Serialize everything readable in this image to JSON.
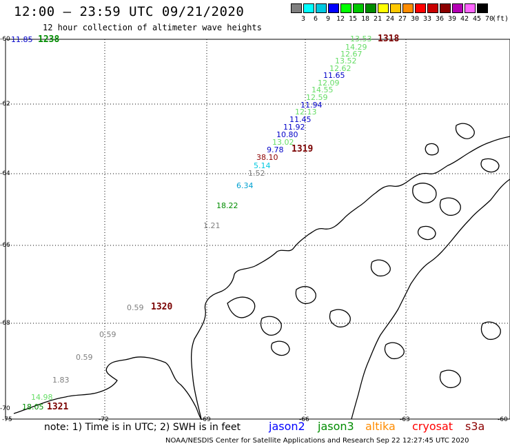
{
  "header": {
    "title": "12:00 – 23:59 UTC 09/21/2020",
    "subtitle": "12 hour collection of altimeter wave heights"
  },
  "legend": {
    "unit": "(ft)",
    "swatches": [
      {
        "label": "3",
        "color": "#7f7f7f"
      },
      {
        "label": "6",
        "color": "#00ffff"
      },
      {
        "label": "9",
        "color": "#00c8e0"
      },
      {
        "label": "12",
        "color": "#0000ff"
      },
      {
        "label": "15",
        "color": "#00ff00"
      },
      {
        "label": "18",
        "color": "#00c800"
      },
      {
        "label": "21",
        "color": "#008c00"
      },
      {
        "label": "24",
        "color": "#ffff00"
      },
      {
        "label": "27",
        "color": "#ffc800"
      },
      {
        "label": "30",
        "color": "#ff8c00"
      },
      {
        "label": "33",
        "color": "#ff0000"
      },
      {
        "label": "36",
        "color": "#c80000"
      },
      {
        "label": "39",
        "color": "#8c0000"
      },
      {
        "label": "42",
        "color": "#b400b4"
      },
      {
        "label": "45",
        "color": "#ff64ff"
      },
      {
        "label": "70",
        "color": "#000000"
      }
    ]
  },
  "axes": {
    "lat_labels": [
      "-60",
      "-62",
      "-64",
      "-66",
      "-68",
      "-70"
    ],
    "lon_labels": [
      "-75",
      "-72",
      "-69",
      "-66",
      "-63",
      "-60"
    ]
  },
  "observations": [
    {
      "text": "11.85",
      "color": "#0000c8"
    },
    {
      "text": "13.53",
      "color": "#66dd66"
    },
    {
      "text": "14.29",
      "color": "#66dd66"
    },
    {
      "text": "12.67",
      "color": "#66dd66"
    },
    {
      "text": "13.52",
      "color": "#66dd66"
    },
    {
      "text": "12.62",
      "color": "#66dd66"
    },
    {
      "text": "11.65",
      "color": "#0000c8"
    },
    {
      "text": "12.09",
      "color": "#66dd66"
    },
    {
      "text": "14.55",
      "color": "#66dd66"
    },
    {
      "text": "12.59",
      "color": "#66dd66"
    },
    {
      "text": "11.94",
      "color": "#0000c8"
    },
    {
      "text": "12.13",
      "color": "#66dd66"
    },
    {
      "text": "11.45",
      "color": "#0000c8"
    },
    {
      "text": "11.92",
      "color": "#0000c8"
    },
    {
      "text": "10.80",
      "color": "#0000c8"
    },
    {
      "text": "13.02",
      "color": "#66dd66"
    },
    {
      "text": "9.78",
      "color": "#0000c8"
    },
    {
      "text": "38.10",
      "color": "#8c0000"
    },
    {
      "text": "5.14",
      "color": "#00c8e0"
    },
    {
      "text": "1.52",
      "color": "#7f7f7f"
    },
    {
      "text": "6.34",
      "color": "#00a0d0"
    },
    {
      "text": "18.22",
      "color": "#008c00"
    },
    {
      "text": "1.21",
      "color": "#7f7f7f"
    },
    {
      "text": "0.59",
      "color": "#7f7f7f"
    },
    {
      "text": "0.59",
      "color": "#7f7f7f"
    },
    {
      "text": "0.59",
      "color": "#7f7f7f"
    },
    {
      "text": "1.83",
      "color": "#7f7f7f"
    },
    {
      "text": "14.98",
      "color": "#66dd66"
    },
    {
      "text": "18.05",
      "color": "#008c00"
    }
  ],
  "passes": [
    {
      "text": "1238",
      "color": "#008c00"
    },
    {
      "text": "1318",
      "color": "#7a0000"
    },
    {
      "text": "1319",
      "color": "#7a0000"
    },
    {
      "text": "1320",
      "color": "#7a0000"
    },
    {
      "text": "1321",
      "color": "#7a0000"
    }
  ],
  "footer": {
    "note": "note: 1) Time is in UTC; 2) SWH is in feet",
    "satellites": [
      {
        "name": "jason2",
        "color": "#0000ff"
      },
      {
        "name": "jason3",
        "color": "#008c00"
      },
      {
        "name": "altika",
        "color": "#ff8c00"
      },
      {
        "name": "cryosat",
        "color": "#ff0000"
      },
      {
        "name": "s3a",
        "color": "#8c0000"
      }
    ],
    "credit": "NOAA/NESDIS Center for Satellite Applications and Research    Sep 22 12:27:45 UTC 2020"
  }
}
